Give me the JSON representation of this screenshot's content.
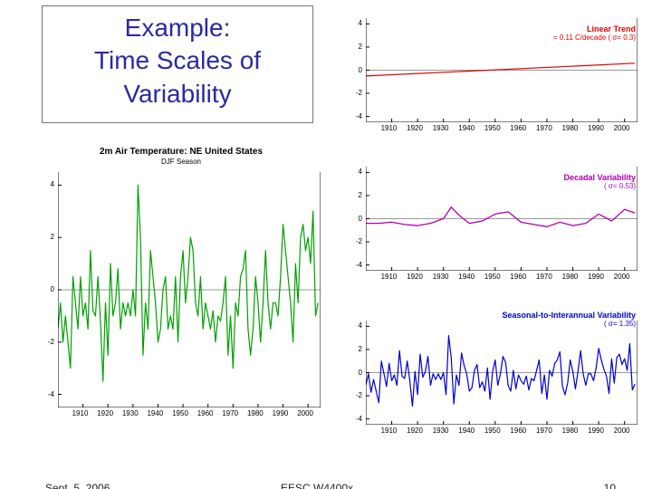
{
  "title": "Example:\nTime Scales of\nVariability",
  "footer": {
    "date": "Sept. 5, 2006",
    "course": "EESC W4400x",
    "page": "10"
  },
  "colors": {
    "title_text": "#2a2aa0",
    "main_series": "#00a000",
    "trend_series": "#e00000",
    "decadal_series": "#b000b0",
    "seasonal_series": "#0000d0",
    "zero_line": "#999999",
    "axis": "#000000",
    "background": "#ffffff"
  },
  "main_chart": {
    "type": "line",
    "title": "2m Air Temperature: NE United States",
    "subtitle": "DJF Season",
    "x": {
      "min": 1900,
      "max": 2005,
      "ticks": [
        1910,
        1920,
        1930,
        1940,
        1950,
        1960,
        1970,
        1980,
        1990,
        2000
      ]
    },
    "y": {
      "min": -4.5,
      "max": 4.5,
      "ticks": [
        -4,
        -2,
        0,
        2,
        4
      ]
    },
    "line_color": "#00a000",
    "line_width": 1.2,
    "years": [
      1900,
      1901,
      1902,
      1903,
      1904,
      1905,
      1906,
      1907,
      1908,
      1909,
      1910,
      1911,
      1912,
      1913,
      1914,
      1915,
      1916,
      1917,
      1918,
      1919,
      1920,
      1921,
      1922,
      1923,
      1924,
      1925,
      1926,
      1927,
      1928,
      1929,
      1930,
      1931,
      1932,
      1933,
      1934,
      1935,
      1936,
      1937,
      1938,
      1939,
      1940,
      1941,
      1942,
      1943,
      1944,
      1945,
      1946,
      1947,
      1948,
      1949,
      1950,
      1951,
      1952,
      1953,
      1954,
      1955,
      1956,
      1957,
      1958,
      1959,
      1960,
      1961,
      1962,
      1963,
      1964,
      1965,
      1966,
      1967,
      1968,
      1969,
      1970,
      1971,
      1972,
      1973,
      1974,
      1975,
      1976,
      1977,
      1978,
      1979,
      1980,
      1981,
      1982,
      1983,
      1984,
      1985,
      1986,
      1987,
      1988,
      1989,
      1990,
      1991,
      1992,
      1993,
      1994,
      1995,
      1996,
      1997,
      1998,
      1999,
      2000,
      2001,
      2002,
      2003,
      2004
    ],
    "values": [
      -1.5,
      -0.5,
      -2.0,
      -1.0,
      -2.0,
      -3.0,
      0.5,
      -0.5,
      -1.5,
      0.5,
      -1.0,
      -0.5,
      -1.5,
      1.5,
      -0.8,
      -1.0,
      0.5,
      -1.2,
      -3.5,
      -0.5,
      -2.5,
      1.0,
      -1.0,
      -0.5,
      0.8,
      -1.5,
      -0.5,
      -1.0,
      -0.5,
      -1.0,
      0.0,
      -1.0,
      4.0,
      2.0,
      -2.5,
      -0.5,
      -1.5,
      1.5,
      0.5,
      -0.5,
      -2.0,
      -1.5,
      0.0,
      0.5,
      -1.5,
      -1.0,
      -1.5,
      0.5,
      -2.0,
      0.5,
      1.5,
      -0.5,
      0.5,
      2.0,
      1.5,
      -0.5,
      -1.0,
      0.5,
      -1.5,
      -0.5,
      -1.0,
      -1.5,
      -0.8,
      -2.0,
      -1.0,
      -1.2,
      -0.5,
      0.5,
      -2.5,
      -1.0,
      -3.0,
      -0.5,
      -1.0,
      0.5,
      0.8,
      1.5,
      -1.5,
      -2.5,
      -1.5,
      0.5,
      -0.5,
      -2.0,
      -0.5,
      1.5,
      -0.5,
      -1.5,
      -0.5,
      -0.5,
      -1.0,
      0.5,
      2.5,
      1.5,
      0.5,
      -0.5,
      -2.0,
      1.0,
      -0.5,
      2.0,
      2.5,
      1.5,
      2.0,
      1.0,
      3.0,
      -1.0,
      -0.5
    ]
  },
  "trend_chart": {
    "type": "line",
    "legend_title": "Linear Trend",
    "legend_detail": "= 0.11 C/decade ( σ= 0.3)",
    "legend_color": "#e00000",
    "x": {
      "min": 1900,
      "max": 2005,
      "ticks": [
        1910,
        1920,
        1930,
        1940,
        1950,
        1960,
        1970,
        1980,
        1990,
        2000
      ]
    },
    "y": {
      "min": -4.5,
      "max": 4.5,
      "ticks": [
        -4,
        -2,
        0,
        2,
        4
      ]
    },
    "line_color": "#e00000",
    "line_width": 1.2,
    "years": [
      1900,
      2004
    ],
    "values": [
      -0.5,
      0.6
    ]
  },
  "decadal_chart": {
    "type": "line",
    "legend_title": "Decadal Variability",
    "legend_detail": "( σ= 0.53)",
    "legend_color": "#b000b0",
    "x": {
      "min": 1900,
      "max": 2005,
      "ticks": [
        1910,
        1920,
        1930,
        1940,
        1950,
        1960,
        1970,
        1980,
        1990,
        2000
      ]
    },
    "y": {
      "min": -4.5,
      "max": 4.5,
      "ticks": [
        -4,
        -2,
        0,
        2,
        4
      ]
    },
    "line_color": "#b000b0",
    "line_width": 1.3,
    "years": [
      1900,
      1905,
      1910,
      1915,
      1920,
      1925,
      1930,
      1933,
      1936,
      1940,
      1945,
      1950,
      1955,
      1960,
      1965,
      1970,
      1975,
      1980,
      1985,
      1990,
      1995,
      2000,
      2004
    ],
    "values": [
      -0.4,
      -0.4,
      -0.3,
      -0.5,
      -0.6,
      -0.4,
      0.0,
      1.0,
      0.3,
      -0.4,
      -0.2,
      0.4,
      0.6,
      -0.3,
      -0.5,
      -0.7,
      -0.3,
      -0.6,
      -0.4,
      0.4,
      -0.2,
      0.8,
      0.5
    ]
  },
  "seasonal_chart": {
    "type": "line",
    "legend_title": "Seasonal-to-Interannual Variability",
    "legend_detail": "( σ= 1.35)",
    "legend_color": "#0000d0",
    "x": {
      "min": 1900,
      "max": 2005,
      "ticks": [
        1910,
        1920,
        1930,
        1940,
        1950,
        1960,
        1970,
        1980,
        1990,
        2000
      ]
    },
    "y": {
      "min": -4.5,
      "max": 4.5,
      "ticks": [
        -4,
        -2,
        0,
        2,
        4
      ]
    },
    "line_color": "#0000d0",
    "line_width": 1.2,
    "years": [
      1900,
      1901,
      1902,
      1903,
      1904,
      1905,
      1906,
      1907,
      1908,
      1909,
      1910,
      1911,
      1912,
      1913,
      1914,
      1915,
      1916,
      1917,
      1918,
      1919,
      1920,
      1921,
      1922,
      1923,
      1924,
      1925,
      1926,
      1927,
      1928,
      1929,
      1930,
      1931,
      1932,
      1933,
      1934,
      1935,
      1936,
      1937,
      1938,
      1939,
      1940,
      1941,
      1942,
      1943,
      1944,
      1945,
      1946,
      1947,
      1948,
      1949,
      1950,
      1951,
      1952,
      1953,
      1954,
      1955,
      1956,
      1957,
      1958,
      1959,
      1960,
      1961,
      1962,
      1963,
      1964,
      1965,
      1966,
      1967,
      1968,
      1969,
      1970,
      1971,
      1972,
      1973,
      1974,
      1975,
      1976,
      1977,
      1978,
      1979,
      1980,
      1981,
      1982,
      1983,
      1984,
      1985,
      1986,
      1987,
      1988,
      1989,
      1990,
      1991,
      1992,
      1993,
      1994,
      1995,
      1996,
      1997,
      1998,
      1999,
      2000,
      2001,
      2002,
      2003,
      2004
    ],
    "values": [
      -1.1,
      -0.1,
      -1.7,
      -0.6,
      -1.6,
      -2.6,
      1.0,
      -0.1,
      -1.2,
      0.8,
      -0.7,
      -0.2,
      -1.1,
      1.9,
      -0.3,
      -0.5,
      1.0,
      -0.7,
      -2.9,
      0.1,
      -1.9,
      1.6,
      -0.4,
      0.1,
      1.4,
      -1.1,
      -0.1,
      -0.6,
      -0.1,
      -0.6,
      0.0,
      -1.9,
      3.2,
      1.3,
      -2.7,
      -0.2,
      -1.1,
      1.7,
      0.6,
      -0.1,
      -1.6,
      -1.3,
      0.2,
      0.7,
      -1.3,
      -0.8,
      -1.6,
      0.4,
      -2.3,
      0.1,
      1.1,
      -1.1,
      -0.1,
      1.4,
      0.9,
      -1.1,
      -1.6,
      0.2,
      -1.4,
      -0.2,
      -0.7,
      -1.0,
      -0.3,
      -1.5,
      -0.5,
      -0.7,
      0.2,
      1.1,
      -1.8,
      -0.2,
      -2.3,
      0.2,
      -0.3,
      0.8,
      1.1,
      1.8,
      -1.2,
      -1.9,
      -0.9,
      1.1,
      0.1,
      -1.4,
      0.1,
      1.9,
      -0.1,
      -1.1,
      -0.1,
      -0.1,
      -0.7,
      0.4,
      2.1,
      1.1,
      0.3,
      -0.3,
      -1.8,
      1.2,
      -0.9,
      1.3,
      1.6,
      0.7,
      1.2,
      0.2,
      2.5,
      -1.5,
      -1.0
    ]
  }
}
